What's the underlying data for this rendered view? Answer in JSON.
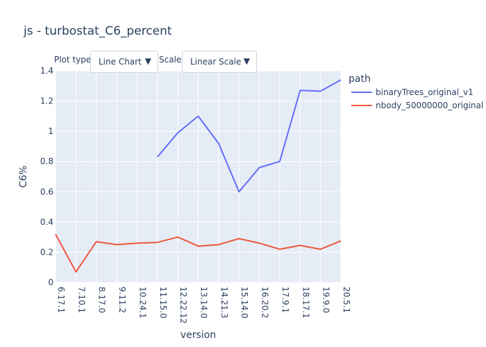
{
  "controls": {
    "plot_type_label": "Plot type:",
    "plot_type_value": "Line Chart",
    "scale_label": "Scale:",
    "scale_value": "Linear Scale",
    "arrow_icon": "triangle-down-icon"
  },
  "colors": {
    "plot_bg": "#e5ecf6",
    "grid": "#ffffff",
    "series": [
      "#636efa",
      "#ef553b"
    ]
  },
  "chart_data": {
    "type": "line",
    "title": "js - turbostat_C6_percent",
    "xlabel": "version",
    "ylabel": "C6%",
    "ylim": [
      0,
      1.4
    ],
    "yticks": [
      0,
      0.2,
      0.4,
      0.6,
      0.8,
      1,
      1.2,
      1.4
    ],
    "ytick_labels": [
      "0",
      "0.2",
      "0.4",
      "0.6",
      "0.8",
      "1",
      "1.2",
      "1.4"
    ],
    "categories": [
      "6.17.1",
      "7.10.1",
      "8.17.0",
      "9.11.2",
      "10.24.1",
      "11.15.0",
      "12.22.12",
      "13.14.0",
      "14.21.3",
      "15.14.0",
      "16.20.2",
      "17.9.1",
      "18.17.1",
      "19.9.0",
      "20.5.1"
    ],
    "legend_title": "path",
    "legend_position": "top-right",
    "grid": true,
    "series": [
      {
        "name": "binaryTrees_original_v1",
        "values": [
          null,
          null,
          null,
          null,
          null,
          0.83,
          0.99,
          1.1,
          0.92,
          0.6,
          0.76,
          0.8,
          1.27,
          1.265,
          1.34
        ]
      },
      {
        "name": "nbody_50000000_original",
        "values": [
          0.32,
          0.07,
          0.27,
          0.25,
          0.26,
          0.265,
          0.3,
          0.24,
          0.25,
          0.29,
          0.26,
          0.22,
          0.245,
          0.22,
          0.275
        ]
      }
    ]
  }
}
